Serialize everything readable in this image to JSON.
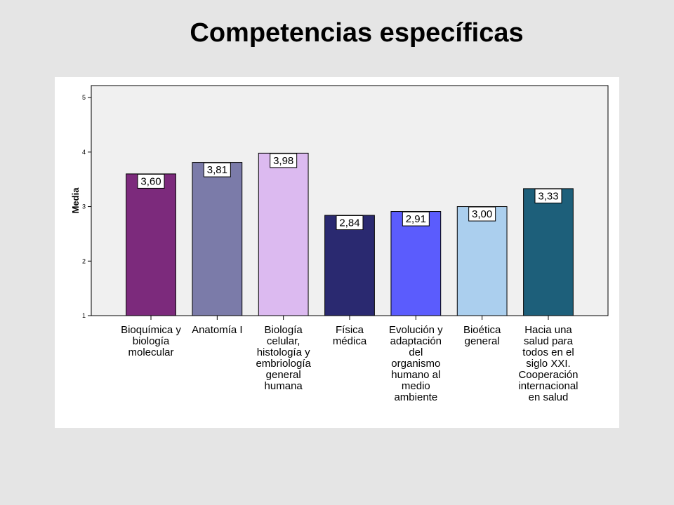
{
  "colors": {
    "page_background": "#e5e5e5",
    "panel_background": "#ffffff",
    "plot_background": "#f0f0f0"
  },
  "chart_data": {
    "type": "bar",
    "title": "Competencias específicas",
    "xlabel": "",
    "ylabel": "Media",
    "categories": [
      "Bioquímica y biología molecular",
      "Anatomía I",
      "Biología celular, histología y embriología general humana",
      "Física médica",
      "Evolución y adaptación del organismo humano al medio ambiente",
      "Bioética general",
      "Hacia una salud para todos en el siglo XXI. Cooperación internacional en salud"
    ],
    "values": [
      3.6,
      3.81,
      3.98,
      2.84,
      2.91,
      3.0,
      3.33
    ],
    "data_labels": [
      "3,60",
      "3,81",
      "3,98",
      "2,84",
      "2,91",
      "3,00",
      "3,33"
    ],
    "ylim": [
      1,
      5.22
    ],
    "yticks": [
      1,
      2,
      3,
      4,
      5
    ],
    "grid": false,
    "bar_colors": [
      "#7c2a7c",
      "#7b7ba9",
      "#dcbaf0",
      "#2a2970",
      "#5b5cfd",
      "#abcfee",
      "#1d5f7a"
    ]
  }
}
